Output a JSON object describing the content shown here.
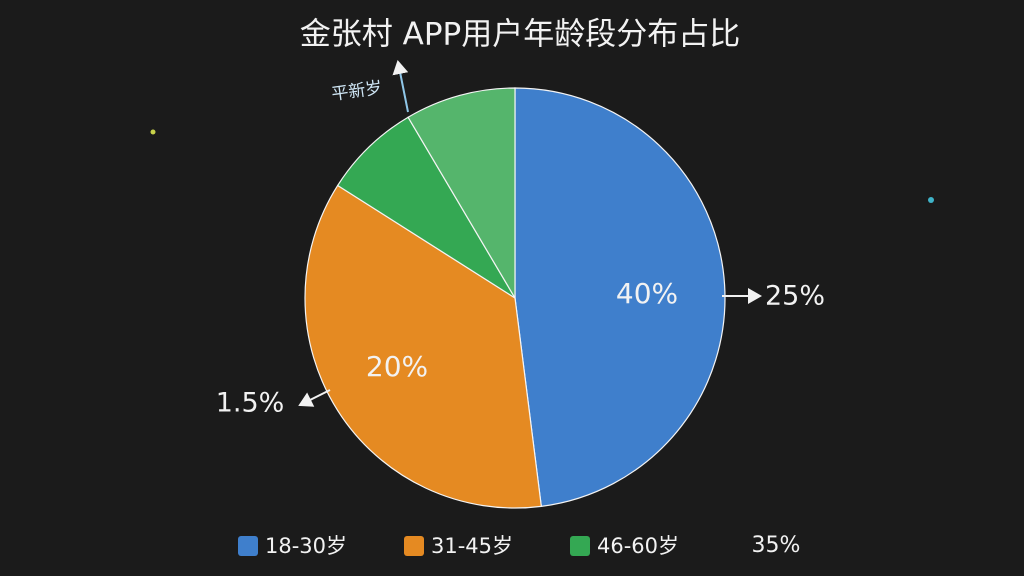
{
  "chart_data": {
    "type": "pie",
    "title": "金张村 APP用户年龄段分布占比",
    "categories": [
      "18-30岁",
      "31-45岁",
      "46-60岁",
      null
    ],
    "values": [
      48,
      36,
      7.5,
      8.5
    ],
    "colors": [
      "#3f7fcc",
      "#e58a22",
      "#34a853",
      "#55b56c"
    ],
    "annotations": [
      "40%",
      "25%",
      "20%",
      "1.5%",
      "35%",
      "平新岁"
    ],
    "legend": "bottom"
  }
}
